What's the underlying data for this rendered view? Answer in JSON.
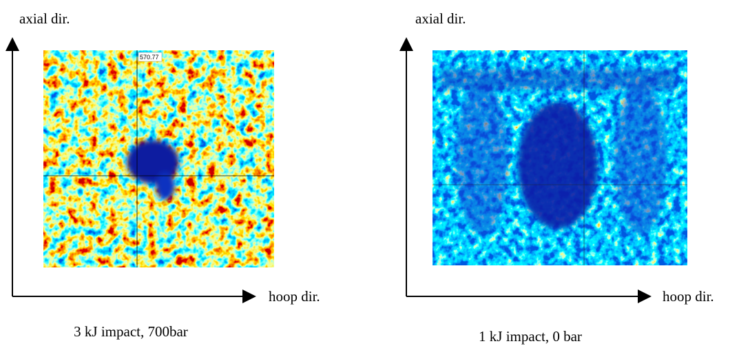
{
  "panels": [
    {
      "axial_label": "axial dir.",
      "hoop_label": "hoop dir.",
      "caption": "3 kJ impact, 700bar",
      "marker": "570.77"
    },
    {
      "axial_label": "axial dir.",
      "hoop_label": "hoop dir.",
      "caption": "1 kJ impact, 0 bar"
    }
  ]
}
